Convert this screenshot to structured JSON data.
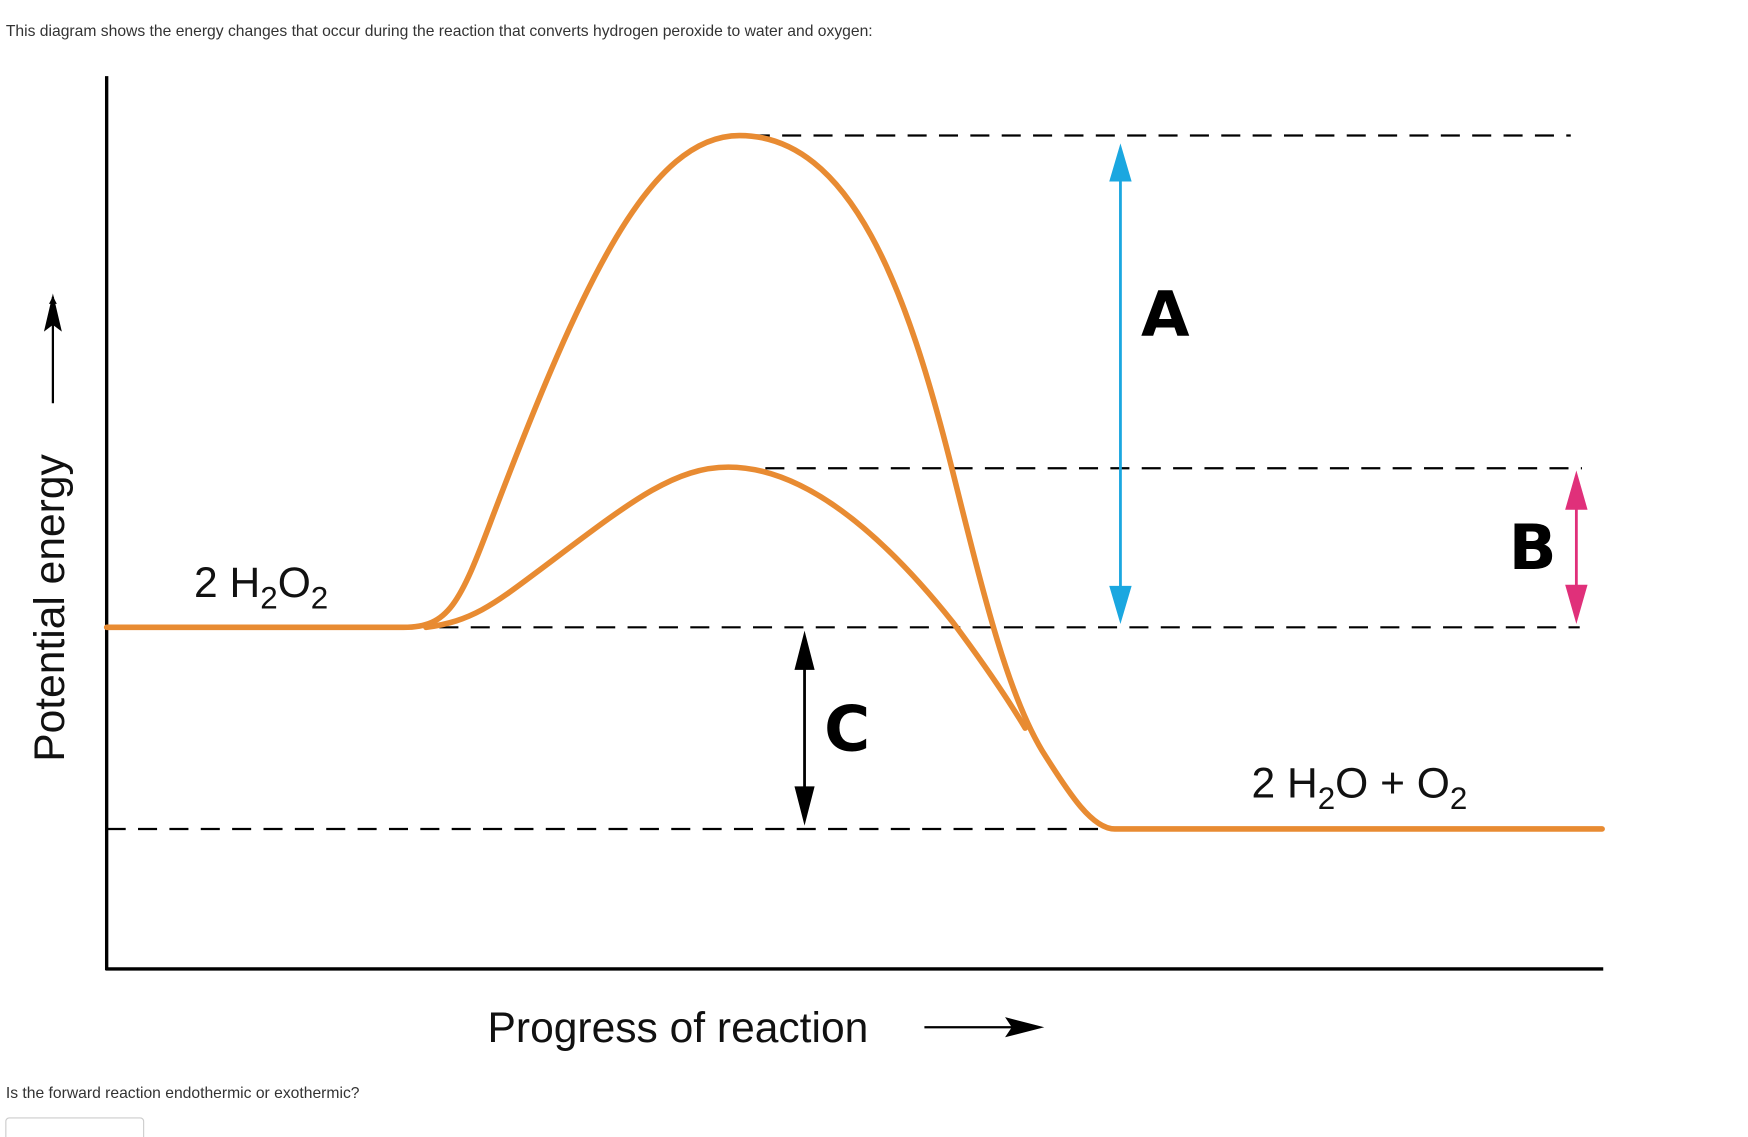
{
  "intro": "This diagram shows the energy changes that occur during the reaction that converts hydrogen peroxide to water and oxygen:",
  "diagram": {
    "y_axis_label": "Potential energy",
    "x_axis_label": "Progress of reaction",
    "reactant_label": [
      "2 H",
      "2",
      "O",
      "2"
    ],
    "product_label": [
      "2 H",
      "2",
      "O + O",
      "2"
    ],
    "arrow_labels": [
      "A",
      "B",
      "C"
    ]
  },
  "question": "Is the forward reaction endothermic or exothermic?"
}
